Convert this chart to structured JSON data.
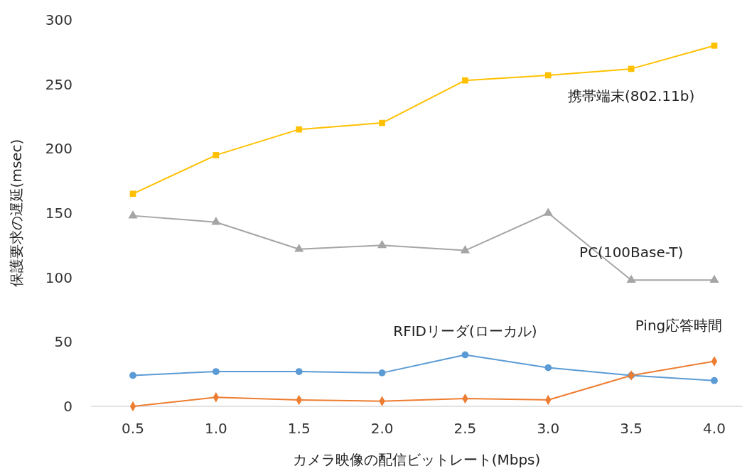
{
  "chart_data": {
    "type": "line",
    "xlabel": "カメラ映像の配信ビットレート(Mbps)",
    "ylabel": "保護要求の遅延(msec)",
    "categories": [
      "0.5",
      "1.0",
      "1.5",
      "2.0",
      "2.5",
      "3.0",
      "3.5",
      "4.0"
    ],
    "series": [
      {
        "name": "携帯端末(802.11b)",
        "color": "#ffc000",
        "marker": "square",
        "values": [
          165,
          195,
          215,
          220,
          253,
          257,
          262,
          280
        ]
      },
      {
        "name": "PC(100Base-T)",
        "color": "#a5a5a5",
        "marker": "triangle",
        "values": [
          148,
          143,
          122,
          125,
          121,
          150,
          98,
          98
        ]
      },
      {
        "name": "RFIDリーダ(ローカル)",
        "color": "#5b9bd5",
        "marker": "circle",
        "values": [
          24,
          27,
          27,
          26,
          40,
          30,
          24,
          20
        ]
      },
      {
        "name": "Ping応答時間",
        "color": "#ed7d31",
        "marker": "diamond",
        "values": [
          0,
          7,
          5,
          4,
          6,
          5,
          24,
          35
        ]
      }
    ],
    "ylim": [
      0,
      300
    ],
    "yticks": [
      0,
      50,
      100,
      150,
      200,
      250,
      300
    ],
    "grid": false
  }
}
